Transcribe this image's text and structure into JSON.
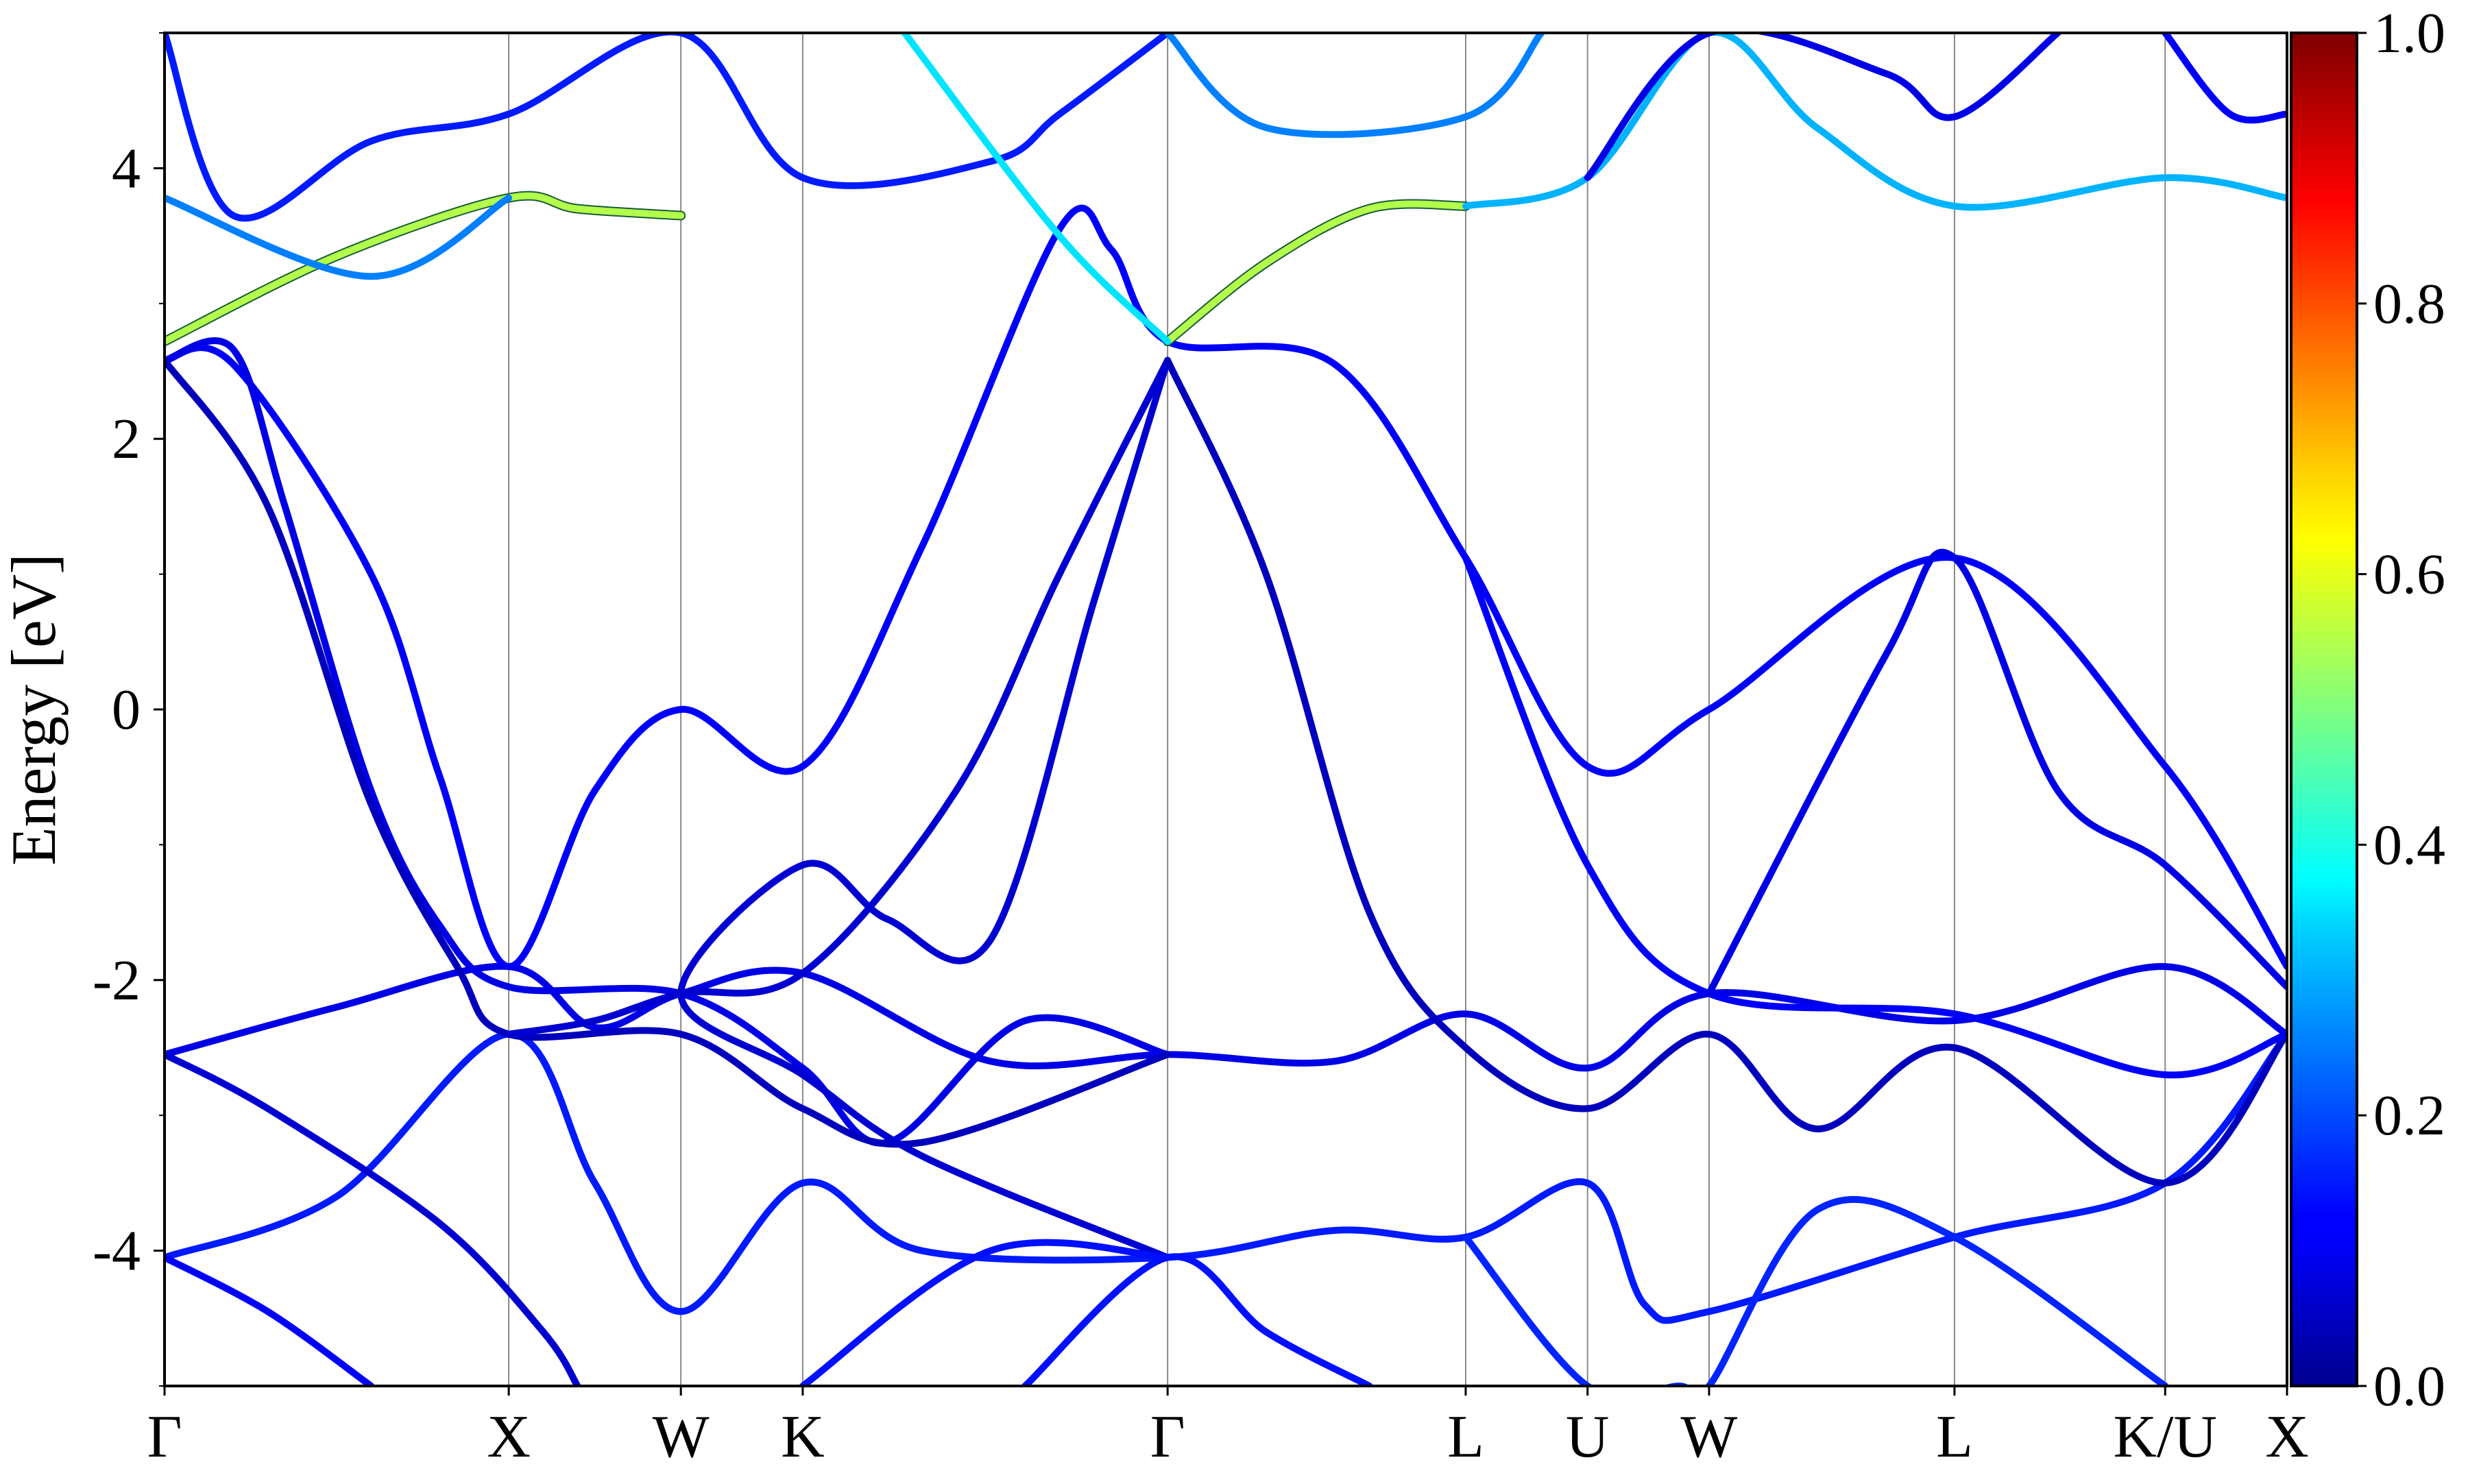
{
  "chart_data": {
    "type": "line",
    "title": "",
    "xlabel": "",
    "ylabel": "Energy [eV]",
    "ylim": [
      -5,
      5
    ],
    "yticks": [
      -4,
      -2,
      0,
      2,
      4
    ],
    "ytick_labels": [
      "-4",
      "-2",
      "0",
      "2",
      "4"
    ],
    "kpath": [
      "Γ",
      "X",
      "W",
      "K",
      "Γ",
      "L",
      "U",
      "W",
      "L",
      "K/U",
      "X"
    ],
    "kpath_positions": [
      0.0,
      1.0,
      1.5,
      1.854,
      2.914,
      3.78,
      4.134,
      4.487,
      5.2,
      5.812,
      6.166
    ],
    "grid": "vertical lines at high-symmetry points",
    "colorbar": {
      "colormap": "jet",
      "range": [
        0.0,
        1.0
      ],
      "ticks": [
        0.0,
        0.2,
        0.4,
        0.6,
        0.8,
        1.0
      ],
      "tick_labels": [
        "0.0",
        "0.2",
        "0.4",
        "0.6",
        "0.8",
        "1.0"
      ]
    },
    "series": [
      {
        "w": 0.15,
        "points": [
          [
            0,
            -4.05
          ],
          [
            0.5,
            -3.6
          ],
          [
            1.0,
            -2.4
          ],
          [
            1.25,
            -3.5
          ],
          [
            1.5,
            -4.45
          ],
          [
            1.854,
            -3.5
          ],
          [
            2.2,
            -4.0
          ],
          [
            2.914,
            -4.05
          ],
          [
            3.4,
            -3.85
          ],
          [
            3.78,
            -3.9
          ],
          [
            4.134,
            -3.5
          ],
          [
            4.3,
            -4.4
          ],
          [
            4.487,
            -4.45
          ],
          [
            5.2,
            -3.9
          ],
          [
            5.812,
            -3.5
          ],
          [
            6.166,
            -2.4
          ]
        ]
      },
      {
        "w": 0.12,
        "points": [
          [
            0,
            -4.05
          ],
          [
            0.3,
            -4.45
          ],
          [
            0.6,
            -5.0
          ]
        ]
      },
      {
        "w": 0.1,
        "points": [
          [
            0,
            -2.55
          ],
          [
            0.5,
            -2.2
          ],
          [
            1.0,
            -1.9
          ],
          [
            1.25,
            -2.35
          ],
          [
            1.5,
            -2.1
          ],
          [
            1.854,
            -1.95
          ],
          [
            2.4,
            -2.6
          ],
          [
            2.914,
            -2.55
          ],
          [
            3.4,
            -2.6
          ],
          [
            3.78,
            -2.25
          ],
          [
            4.134,
            -2.65
          ],
          [
            4.487,
            -2.1
          ],
          [
            5.2,
            -2.3
          ],
          [
            5.812,
            -1.9
          ],
          [
            6.166,
            -2.4
          ]
        ]
      },
      {
        "w": 0.08,
        "points": [
          [
            0,
            -2.55
          ],
          [
            0.3,
            -2.95
          ],
          [
            0.8,
            -3.8
          ],
          [
            1.1,
            -4.6
          ],
          [
            1.2,
            -5.0
          ]
        ]
      },
      {
        "w": 0.12,
        "points": [
          [
            0,
            2.58
          ],
          [
            0.2,
            2.55
          ],
          [
            0.6,
            1.0
          ],
          [
            0.8,
            -0.5
          ],
          [
            1.0,
            -1.9
          ],
          [
            1.25,
            -0.6
          ],
          [
            1.5,
            0.0
          ],
          [
            1.854,
            -0.42
          ],
          [
            2.2,
            1.2
          ],
          [
            2.6,
            3.55
          ],
          [
            2.75,
            3.4
          ],
          [
            2.914,
            2.72
          ],
          [
            3.4,
            2.55
          ],
          [
            3.78,
            1.12
          ],
          [
            4.134,
            -0.42
          ],
          [
            4.487,
            0.0
          ],
          [
            5.2,
            1.12
          ],
          [
            5.812,
            -0.42
          ],
          [
            6.166,
            -1.9
          ]
        ]
      },
      {
        "w": 0.1,
        "points": [
          [
            0,
            2.58
          ],
          [
            0.2,
            2.66
          ],
          [
            0.35,
            1.5
          ],
          [
            0.6,
            -0.6
          ],
          [
            0.8,
            -1.6
          ],
          [
            1.0,
            -2.05
          ],
          [
            1.5,
            -2.1
          ],
          [
            1.854,
            -2.65
          ],
          [
            2.1,
            -3.2
          ],
          [
            2.5,
            -2.3
          ],
          [
            2.914,
            -2.55
          ]
        ]
      },
      {
        "w": 0.06,
        "points": [
          [
            0,
            2.58
          ],
          [
            0.3,
            1.5
          ],
          [
            0.6,
            -0.7
          ],
          [
            0.85,
            -1.9
          ],
          [
            1.0,
            -2.4
          ],
          [
            1.5,
            -2.4
          ],
          [
            1.854,
            -2.95
          ],
          [
            2.2,
            -3.2
          ],
          [
            2.914,
            -2.55
          ]
        ]
      },
      {
        "w": 0.08,
        "points": [
          [
            2.914,
            2.58
          ],
          [
            2.6,
            1.0
          ],
          [
            2.3,
            -0.6
          ],
          [
            1.854,
            -1.95
          ],
          [
            1.5,
            -2.1
          ],
          [
            1.25,
            -2.3
          ],
          [
            1.0,
            -2.4
          ]
        ]
      },
      {
        "w": 0.08,
        "points": [
          [
            2.914,
            2.58
          ],
          [
            2.7,
            0.8
          ],
          [
            2.4,
            -1.7
          ],
          [
            2.1,
            -1.55
          ],
          [
            1.854,
            -1.15
          ],
          [
            1.5,
            -2.1
          ],
          [
            1.854,
            -2.7
          ],
          [
            2.2,
            -3.3
          ],
          [
            2.914,
            -4.05
          ]
        ]
      },
      {
        "w": 0.06,
        "points": [
          [
            2.914,
            2.58
          ],
          [
            3.2,
            1.0
          ],
          [
            3.5,
            -1.5
          ],
          [
            3.78,
            -2.5
          ],
          [
            4.134,
            -2.95
          ],
          [
            4.487,
            -2.4
          ],
          [
            4.8,
            -3.1
          ],
          [
            5.2,
            -2.5
          ],
          [
            5.812,
            -3.5
          ],
          [
            6.166,
            -2.4
          ]
        ]
      },
      {
        "w": 0.12,
        "points": [
          [
            3.78,
            1.12
          ],
          [
            4.134,
            -1.15
          ],
          [
            4.487,
            -2.1
          ],
          [
            5.2,
            -2.25
          ],
          [
            5.812,
            -2.7
          ],
          [
            6.166,
            -2.4
          ]
        ]
      },
      {
        "w": 0.1,
        "points": [
          [
            4.487,
            -2.1
          ],
          [
            5.0,
            0.4
          ],
          [
            5.2,
            1.12
          ],
          [
            5.5,
            -0.6
          ],
          [
            5.812,
            -1.15
          ],
          [
            6.166,
            -2.05
          ]
        ]
      },
      {
        "w": 0.14,
        "points": [
          [
            2.5,
            -5.0
          ],
          [
            2.914,
            -4.05
          ],
          [
            3.2,
            -4.6
          ],
          [
            3.5,
            -5.0
          ]
        ]
      },
      {
        "w": 0.14,
        "points": [
          [
            1.854,
            -5.0
          ],
          [
            2.4,
            -4.0
          ],
          [
            2.914,
            -4.05
          ]
        ]
      },
      {
        "w": 0.16,
        "points": [
          [
            3.78,
            -3.9
          ],
          [
            4.134,
            -5.0
          ],
          [
            4.4,
            -5.0
          ],
          [
            4.487,
            -5.0
          ],
          [
            4.8,
            -3.7
          ],
          [
            5.2,
            -3.9
          ],
          [
            5.812,
            -5.0
          ]
        ]
      },
      {
        "w": 0.55,
        "points": [
          [
            0,
            2.72
          ],
          [
            0.5,
            3.35
          ],
          [
            1.0,
            3.78
          ],
          [
            1.2,
            3.7
          ],
          [
            1.5,
            3.65
          ]
        ]
      },
      {
        "w": 0.25,
        "points": [
          [
            0,
            3.78
          ],
          [
            0.6,
            3.2
          ],
          [
            1.0,
            3.78
          ]
        ]
      },
      {
        "w": 0.55,
        "points": [
          [
            2.914,
            2.72
          ],
          [
            3.2,
            3.3
          ],
          [
            3.5,
            3.7
          ],
          [
            3.78,
            3.72
          ]
        ]
      },
      {
        "w": 0.3,
        "points": [
          [
            3.78,
            3.72
          ],
          [
            4.134,
            3.93
          ],
          [
            4.487,
            5.0
          ],
          [
            4.8,
            4.3
          ],
          [
            5.2,
            3.72
          ],
          [
            5.812,
            3.93
          ],
          [
            6.166,
            3.78
          ]
        ]
      },
      {
        "w": 0.15,
        "points": [
          [
            0,
            5.0
          ],
          [
            0.2,
            3.65
          ],
          [
            0.6,
            4.2
          ],
          [
            1.0,
            4.4
          ],
          [
            1.5,
            5.0
          ],
          [
            1.854,
            3.93
          ],
          [
            2.4,
            4.05
          ],
          [
            2.6,
            4.4
          ],
          [
            2.914,
            5.0
          ]
        ]
      },
      {
        "w": 0.25,
        "points": [
          [
            2.914,
            5.0
          ],
          [
            3.2,
            4.3
          ],
          [
            3.78,
            4.38
          ],
          [
            4.0,
            5.0
          ]
        ]
      },
      {
        "w": 0.35,
        "points": [
          [
            2.15,
            5.0
          ],
          [
            2.6,
            3.5
          ],
          [
            2.914,
            2.72
          ]
        ]
      },
      {
        "w": 0.1,
        "points": [
          [
            4.134,
            3.93
          ],
          [
            4.487,
            5.0
          ],
          [
            5.0,
            4.7
          ],
          [
            5.2,
            4.38
          ],
          [
            5.5,
            5.0
          ]
        ]
      },
      {
        "w": 0.12,
        "points": [
          [
            5.812,
            5.0
          ],
          [
            6.0,
            4.4
          ],
          [
            6.166,
            4.4
          ]
        ]
      }
    ]
  }
}
